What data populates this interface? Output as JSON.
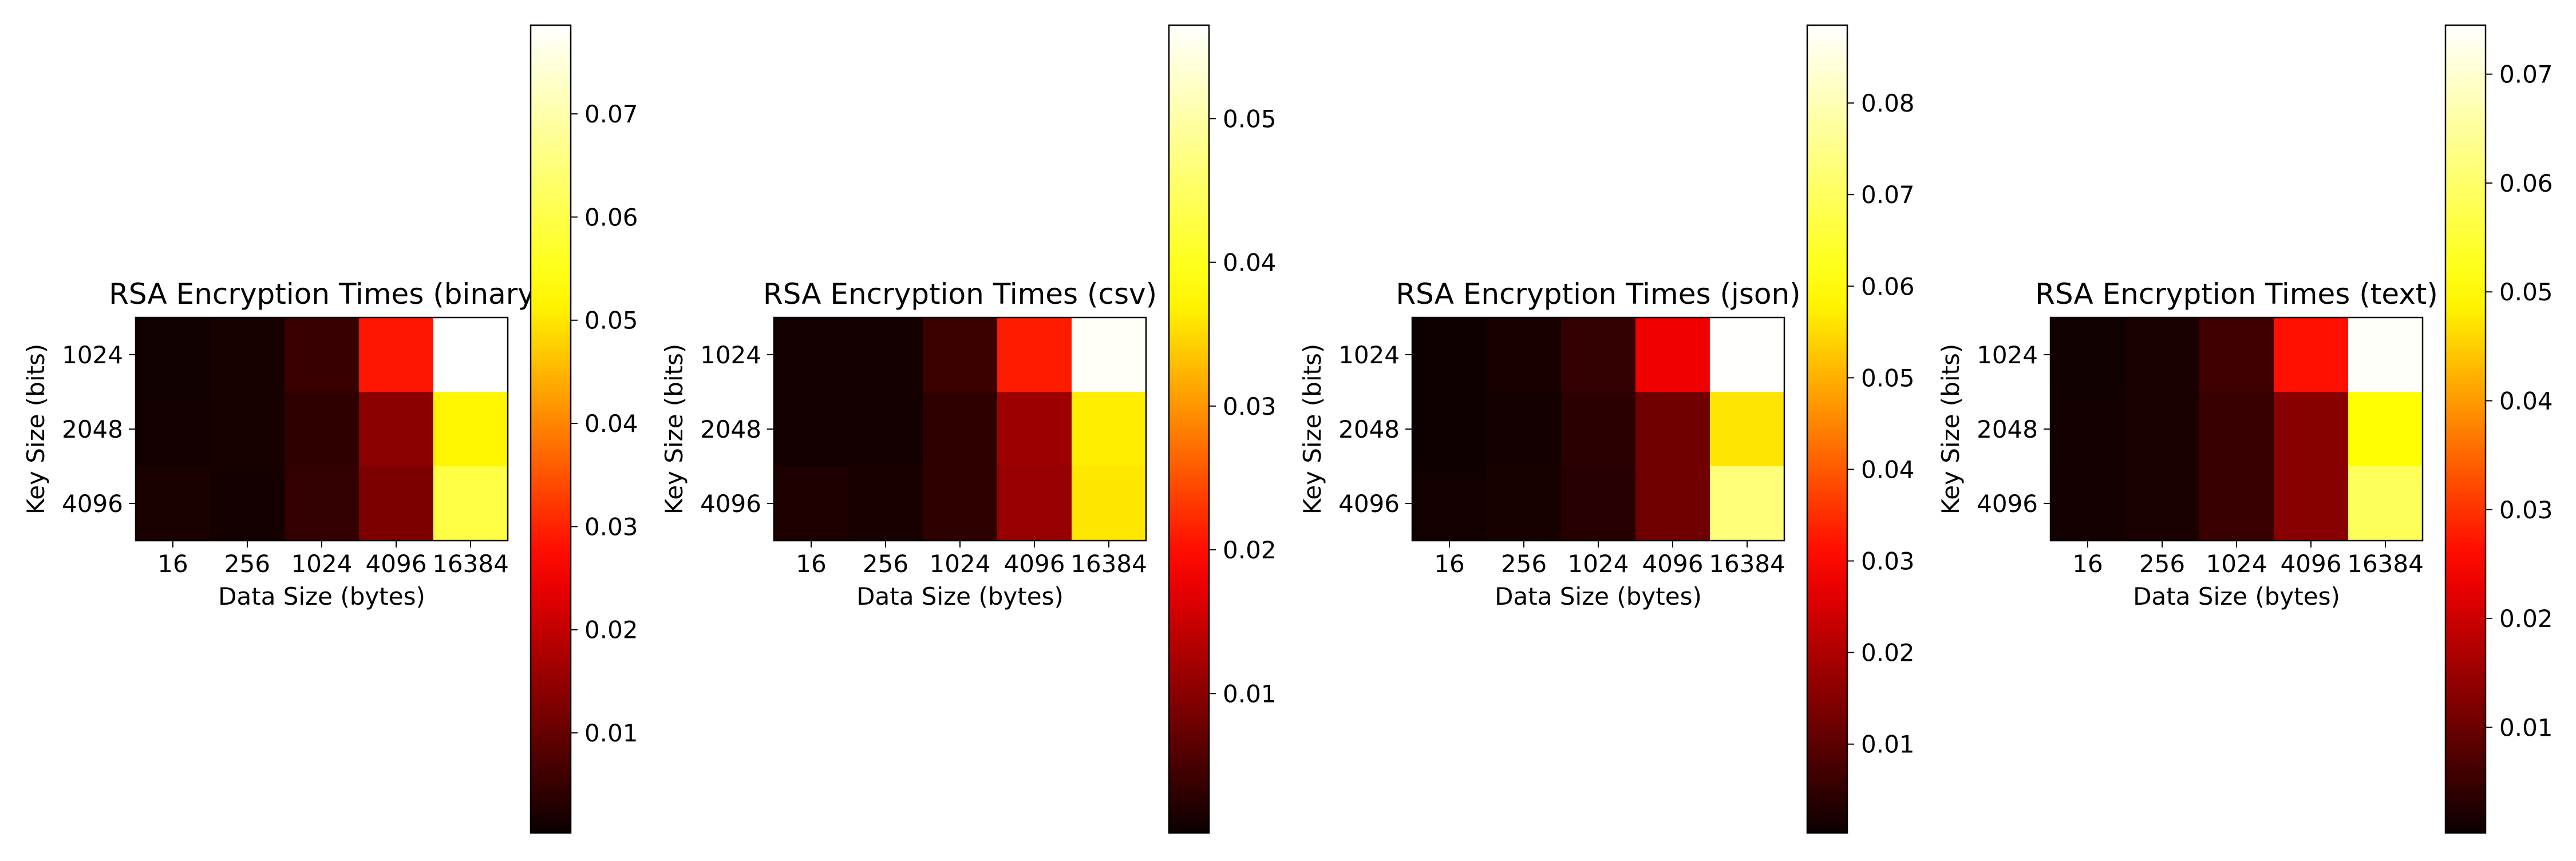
{
  "figure": {
    "colormap": "hot",
    "colormap_stops": [
      "#0b0000",
      "#ff0000",
      "#ffff00",
      "#ffffff"
    ]
  },
  "chart_data": [
    {
      "type": "heatmap",
      "title": "RSA Encryption Times (binary",
      "xlabel": "Data Size (bytes)",
      "ylabel": "Key Size (bits)",
      "x_categories": [
        "16",
        "256",
        "1024",
        "4096",
        "16384"
      ],
      "y_categories": [
        "1024",
        "2048",
        "4096"
      ],
      "values": [
        [
          0.0008,
          0.0016,
          0.0052,
          0.0285,
          0.0786
        ],
        [
          0.001,
          0.0015,
          0.004,
          0.014,
          0.0515
        ],
        [
          0.002,
          0.0014,
          0.0045,
          0.0125,
          0.0595
        ]
      ],
      "colorbar": {
        "vmin": 0.0003,
        "vmax": 0.0786,
        "ticks": [
          0.01,
          0.02,
          0.03,
          0.04,
          0.05,
          0.06,
          0.07
        ],
        "tick_labels": [
          "0.01",
          "0.02",
          "0.03",
          "0.04",
          "0.05",
          "0.06",
          "0.07"
        ]
      }
    },
    {
      "type": "heatmap",
      "title": "RSA Encryption Times (csv)",
      "xlabel": "Data Size (bytes)",
      "ylabel": "Key Size (bits)",
      "x_categories": [
        "16",
        "256",
        "1024",
        "4096",
        "16384"
      ],
      "y_categories": [
        "1024",
        "2048",
        "4096"
      ],
      "values": [
        [
          0.0008,
          0.001,
          0.004,
          0.021,
          0.056
        ],
        [
          0.0009,
          0.001,
          0.003,
          0.0115,
          0.0365
        ],
        [
          0.0018,
          0.0014,
          0.003,
          0.011,
          0.036
        ]
      ],
      "colorbar": {
        "vmin": 0.0003,
        "vmax": 0.0565,
        "ticks": [
          0.01,
          0.02,
          0.03,
          0.04,
          0.05
        ],
        "tick_labels": [
          "0.01",
          "0.02",
          "0.03",
          "0.04",
          "0.05"
        ]
      }
    },
    {
      "type": "heatmap",
      "title": "RSA Encryption Times (json)",
      "xlabel": "Data Size (bytes)",
      "ylabel": "Key Size (bits)",
      "x_categories": [
        "16",
        "256",
        "1024",
        "4096",
        "16384"
      ],
      "y_categories": [
        "1024",
        "2048",
        "4096"
      ],
      "values": [
        [
          0.0008,
          0.002,
          0.005,
          0.028,
          0.088
        ],
        [
          0.0008,
          0.0014,
          0.004,
          0.0125,
          0.056
        ],
        [
          0.0012,
          0.0016,
          0.0035,
          0.0125,
          0.073
        ]
      ],
      "colorbar": {
        "vmin": 0.0003,
        "vmax": 0.0885,
        "ticks": [
          0.01,
          0.02,
          0.03,
          0.04,
          0.05,
          0.06,
          0.07,
          0.08
        ],
        "tick_labels": [
          "0.01",
          "0.02",
          "0.03",
          "0.04",
          "0.05",
          "0.06",
          "0.07",
          "0.08"
        ]
      }
    },
    {
      "type": "heatmap",
      "title": "RSA Encryption Times (text)",
      "xlabel": "Data Size (bytes)",
      "ylabel": "Key Size (bits)",
      "x_categories": [
        "16",
        "256",
        "1024",
        "4096",
        "16384"
      ],
      "y_categories": [
        "1024",
        "2048",
        "4096"
      ],
      "values": [
        [
          0.0008,
          0.0018,
          0.0055,
          0.0265,
          0.074
        ],
        [
          0.001,
          0.0018,
          0.005,
          0.013,
          0.05
        ],
        [
          0.0012,
          0.0018,
          0.005,
          0.013,
          0.0585
        ]
      ],
      "colorbar": {
        "vmin": 0.0003,
        "vmax": 0.0745,
        "ticks": [
          0.01,
          0.02,
          0.03,
          0.04,
          0.05,
          0.06,
          0.07
        ],
        "tick_labels": [
          "0.01",
          "0.02",
          "0.03",
          "0.04",
          "0.05",
          "0.06",
          "0.07"
        ]
      }
    }
  ]
}
